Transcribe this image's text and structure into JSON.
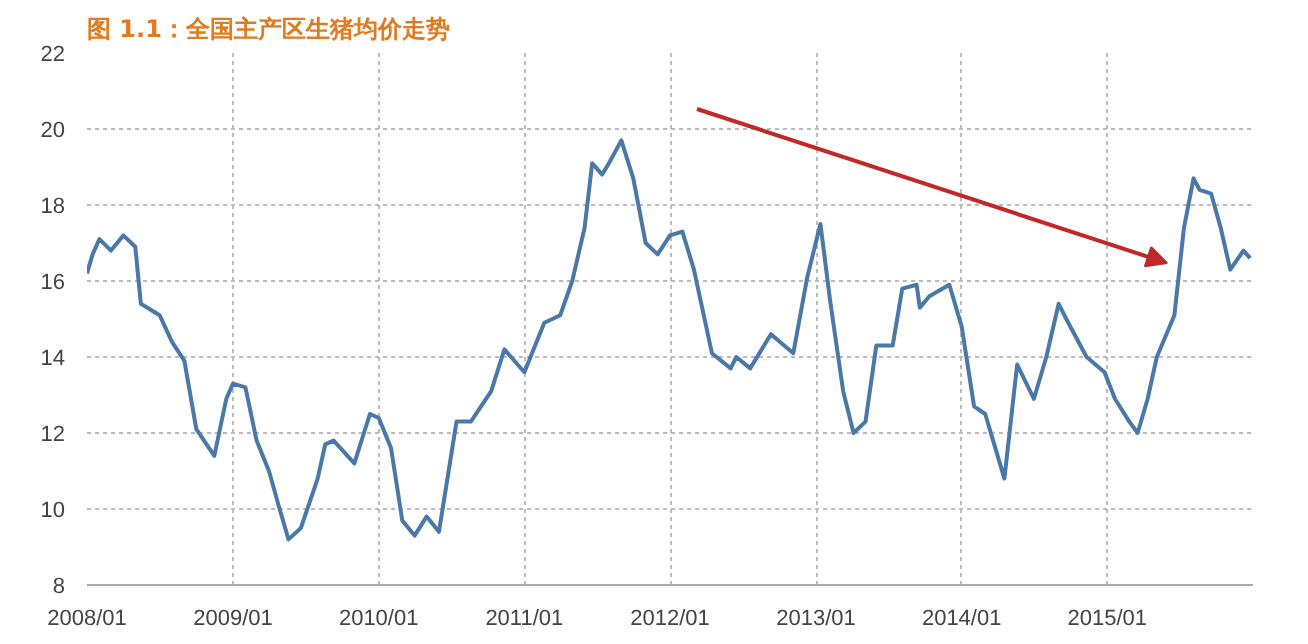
{
  "chart_data": {
    "type": "line",
    "title": "图 1.1：全国主产区生猪均价走势",
    "x": [
      "2008-01-01",
      "2008-01-15",
      "2008-02-01",
      "2008-03-01",
      "2008-04-01",
      "2008-05-01",
      "2008-05-15",
      "2008-07-01",
      "2008-08-01",
      "2008-09-01",
      "2008-10-01",
      "2008-11-15",
      "2008-12-15",
      "2009-01-01",
      "2009-02-01",
      "2009-03-01",
      "2009-04-01",
      "2009-04-25",
      "2009-05-20",
      "2009-06-20",
      "2009-08-01",
      "2009-08-20",
      "2009-09-10",
      "2009-11-01",
      "2009-12-10",
      "2010-01-01",
      "2010-02-01",
      "2010-03-01",
      "2010-04-01",
      "2010-05-01",
      "2010-06-01",
      "2010-07-15",
      "2010-08-20",
      "2010-10-10",
      "2010-11-12",
      "2011-01-01",
      "2011-02-20",
      "2011-04-01",
      "2011-05-01",
      "2011-06-01",
      "2011-06-20",
      "2011-07-15",
      "2011-08-01",
      "2011-09-01",
      "2011-10-01",
      "2011-11-01",
      "2011-12-01",
      "2012-01-01",
      "2012-02-01",
      "2012-03-01",
      "2012-04-15",
      "2012-06-01",
      "2012-06-15",
      "2012-07-20",
      "2012-09-10",
      "2012-11-05",
      "2012-12-10",
      "2013-01-12",
      "2013-02-05",
      "2013-03-10",
      "2013-04-05",
      "2013-05-05",
      "2013-06-01",
      "2013-07-12",
      "2013-08-05",
      "2013-09-10",
      "2013-09-18",
      "2013-10-12",
      "2013-12-01",
      "2014-01-01",
      "2014-02-01",
      "2014-03-01",
      "2014-04-18",
      "2014-05-20",
      "2014-07-01",
      "2014-08-01",
      "2014-09-01",
      "2014-09-20",
      "2014-11-10",
      "2014-12-25",
      "2015-01-20",
      "2015-02-25",
      "2015-03-18",
      "2015-04-12",
      "2015-05-05",
      "2015-06-18",
      "2015-07-12",
      "2015-08-05",
      "2015-08-20",
      "2015-09-18",
      "2015-10-12",
      "2015-11-05",
      "2015-12-08",
      "2015-12-25"
    ],
    "series": [
      {
        "color": "#4a78a8",
        "values": [
          16.2,
          16.7,
          17.1,
          16.8,
          17.2,
          16.9,
          15.4,
          15.1,
          14.4,
          13.9,
          12.1,
          11.4,
          12.9,
          13.3,
          13.2,
          11.8,
          11.0,
          10.1,
          9.2,
          9.5,
          10.8,
          11.7,
          11.8,
          11.2,
          12.5,
          12.4,
          11.6,
          9.7,
          9.3,
          9.8,
          9.4,
          12.3,
          12.3,
          13.1,
          14.2,
          13.6,
          14.9,
          15.1,
          16.0,
          17.4,
          19.1,
          18.8,
          19.1,
          19.7,
          18.7,
          17.0,
          16.7,
          17.2,
          17.3,
          16.3,
          14.1,
          13.7,
          14.0,
          13.7,
          14.6,
          14.1,
          16.1,
          17.5,
          15.5,
          13.1,
          12.0,
          12.3,
          14.3,
          14.3,
          15.8,
          15.9,
          15.3,
          15.6,
          15.9,
          14.8,
          12.7,
          12.5,
          10.8,
          13.8,
          12.9,
          14.0,
          15.4,
          15.0,
          14.0,
          13.6,
          12.9,
          12.3,
          12.0,
          12.9,
          14.0,
          15.1,
          17.4,
          18.7,
          18.4,
          18.3,
          17.4,
          16.3,
          16.8,
          16.6
        ]
      }
    ],
    "xlim": [
      "2008-01-01",
      "2016-01-01"
    ],
    "xticks": [
      {
        "value": "2008-01-01",
        "label": "2008/01"
      },
      {
        "value": "2009-01-01",
        "label": "2009/01"
      },
      {
        "value": "2010-01-01",
        "label": "2010/01"
      },
      {
        "value": "2011-01-01",
        "label": "2011/01"
      },
      {
        "value": "2012-01-01",
        "label": "2012/01"
      },
      {
        "value": "2013-01-01",
        "label": "2013/01"
      },
      {
        "value": "2014-01-01",
        "label": "2014/01"
      },
      {
        "value": "2015-01-01",
        "label": "2015/01"
      }
    ],
    "ylim": [
      8,
      22
    ],
    "yticks": [
      8,
      10,
      12,
      14,
      16,
      18,
      20,
      22
    ],
    "grid": true,
    "marker": "none",
    "line_style": "solid"
  }
}
